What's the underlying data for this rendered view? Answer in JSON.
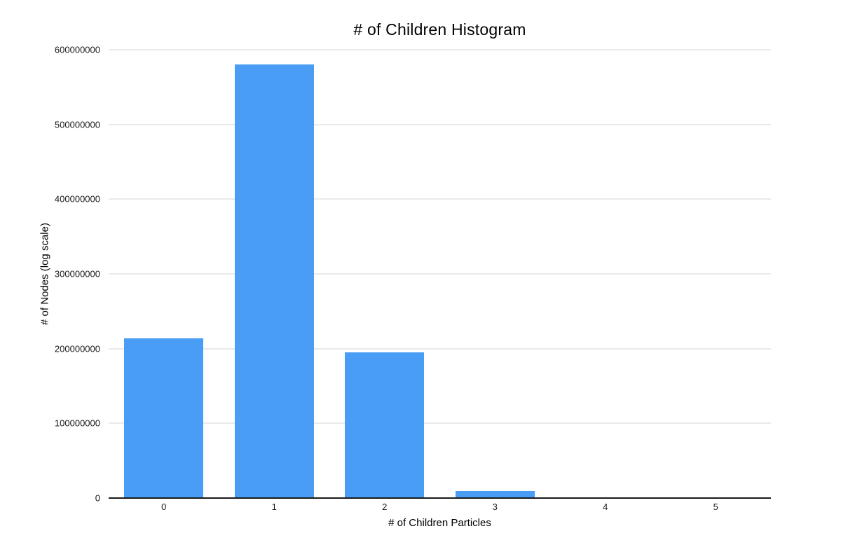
{
  "chart": {
    "colors": {
      "bar": "#4A9DF5",
      "gridline": "#D5D5D5",
      "axis_line": "#1a1a1a",
      "background": "#ffffff",
      "text": "#000000"
    }
  },
  "chart_data": {
    "type": "bar",
    "title": "# of Children Histogram",
    "xlabel": "# of Children Particles",
    "ylabel": "# of Nodes (log scale)",
    "categories": [
      "0",
      "1",
      "2",
      "3",
      "4",
      "5"
    ],
    "values": [
      214000000,
      580000000,
      195000000,
      9500000,
      0,
      0
    ],
    "ylim": [
      0,
      600000000
    ],
    "ytick_interval": 100000000,
    "ytick_labels": [
      "0",
      "100000000",
      "200000000",
      "300000000",
      "400000000",
      "500000000",
      "600000000"
    ],
    "grid": true,
    "legend_position": "none"
  }
}
